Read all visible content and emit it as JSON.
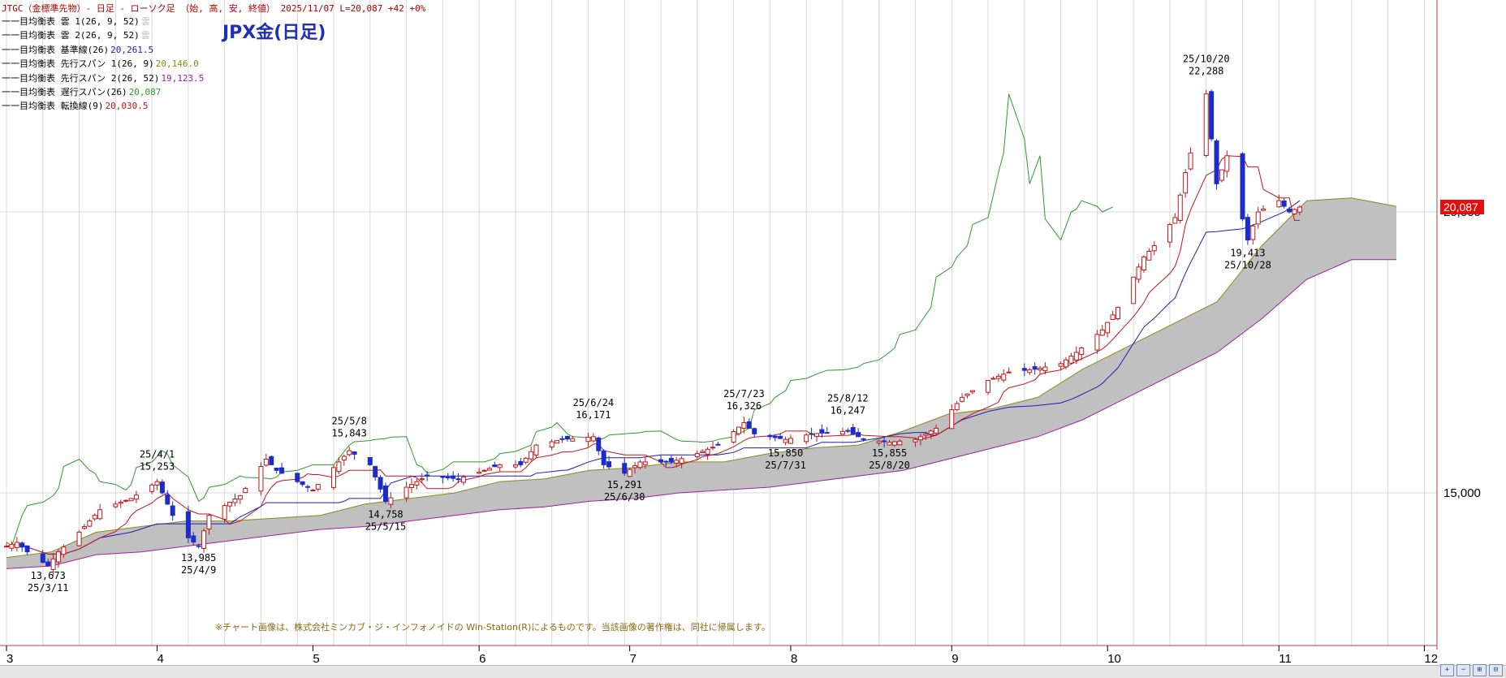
{
  "header": "JTGC（金標準先物）- 日足 - ローソク足 （始, 高, 安, 終値） 2025/11/07 L=20,087 +42 +0%",
  "title": "JPX金(日足)",
  "legend": [
    {
      "label": "一目均衡表 雲 1(26, 9, 52)",
      "value": "雲",
      "color": "#bdbdbd"
    },
    {
      "label": "一目均衡表 雲 2(26, 9, 52)",
      "value": "雲",
      "color": "#bdbdbd"
    },
    {
      "label": "一目均衡表 基準線(26)",
      "value": "20,261.5",
      "color": "#1c1cb8"
    },
    {
      "label": "一目均衡表 先行スパン 1(26, 9)",
      "value": "20,146.0",
      "color": "#8a8a20"
    },
    {
      "label": "一目均衡表 先行スパン 2(26, 52)",
      "value": "19,123.5",
      "color": "#a020a0"
    },
    {
      "label": "一目均衡表 遅行スパン(26)",
      "value": "20,087",
      "color": "#2c9a2c"
    },
    {
      "label": "一目均衡表 転換線(9)",
      "value": "20,030.5",
      "color": "#c01818"
    }
  ],
  "copyright": "※チャート画像は、株式会社ミンカブ・ジ・インフォノイドの Win-Station(R)によるものです。当該画像の著作権は、同社に帰属します。",
  "chart_data": {
    "type": "candlestick",
    "title": "JPX金(日足)",
    "date_range": [
      "2025-03-03",
      "2025-12-05"
    ],
    "y_axis": {
      "ticks": [
        15000,
        20000
      ],
      "tick_labels": [
        "15,000",
        "20,000"
      ]
    },
    "x_axis": {
      "tick_labels": [
        {
          "label": "3",
          "date": "2025-03-03"
        },
        {
          "label": "4",
          "date": "2025-04-01"
        },
        {
          "label": "5",
          "date": "2025-05-01"
        },
        {
          "label": "6",
          "date": "2025-06-02"
        },
        {
          "label": "7",
          "date": "2025-07-01"
        },
        {
          "label": "8",
          "date": "2025-08-01"
        },
        {
          "label": "9",
          "date": "2025-09-01"
        },
        {
          "label": "10",
          "date": "2025-10-01"
        },
        {
          "label": "11",
          "date": "2025-11-03"
        },
        {
          "label": "12",
          "date": "2025-12-01"
        }
      ]
    },
    "last_price": "20,087",
    "close_path": [
      [
        "2025-03-03",
        14050
      ],
      [
        "2025-03-05",
        14120
      ],
      [
        "2025-03-07",
        13950
      ],
      [
        "2025-03-11",
        13700
      ],
      [
        "2025-03-13",
        13950
      ],
      [
        "2025-03-17",
        14300
      ],
      [
        "2025-03-21",
        14700
      ],
      [
        "2025-03-27",
        14900
      ],
      [
        "2025-04-01",
        15200
      ],
      [
        "2025-04-04",
        14600
      ],
      [
        "2025-04-07",
        14200
      ],
      [
        "2025-04-09",
        14050
      ],
      [
        "2025-04-11",
        14600
      ],
      [
        "2025-04-17",
        14950
      ],
      [
        "2025-04-22",
        15600
      ],
      [
        "2025-04-24",
        15400
      ],
      [
        "2025-04-28",
        15200
      ],
      [
        "2025-05-01",
        15050
      ],
      [
        "2025-05-08",
        15750
      ],
      [
        "2025-05-12",
        15500
      ],
      [
        "2025-05-15",
        14850
      ],
      [
        "2025-05-19",
        15100
      ],
      [
        "2025-05-23",
        15300
      ],
      [
        "2025-05-29",
        15250
      ],
      [
        "2025-06-03",
        15400
      ],
      [
        "2025-06-06",
        15500
      ],
      [
        "2025-06-10",
        15500
      ],
      [
        "2025-06-13",
        15850
      ],
      [
        "2025-06-18",
        15950
      ],
      [
        "2025-06-24",
        16000
      ],
      [
        "2025-06-26",
        15500
      ],
      [
        "2025-06-30",
        15350
      ],
      [
        "2025-07-03",
        15550
      ],
      [
        "2025-07-09",
        15550
      ],
      [
        "2025-07-14",
        15700
      ],
      [
        "2025-07-18",
        15850
      ],
      [
        "2025-07-23",
        16250
      ],
      [
        "2025-07-25",
        16050
      ],
      [
        "2025-07-31",
        15950
      ],
      [
        "2025-08-05",
        16050
      ],
      [
        "2025-08-12",
        16100
      ],
      [
        "2025-08-15",
        15950
      ],
      [
        "2025-08-20",
        15900
      ],
      [
        "2025-08-25",
        15950
      ],
      [
        "2025-08-29",
        16150
      ],
      [
        "2025-09-03",
        16700
      ],
      [
        "2025-09-08",
        17000
      ],
      [
        "2025-09-12",
        17150
      ],
      [
        "2025-09-17",
        17200
      ],
      [
        "2025-09-22",
        17300
      ],
      [
        "2025-09-25",
        17500
      ],
      [
        "2025-09-30",
        17900
      ],
      [
        "2025-10-03",
        18300
      ],
      [
        "2025-10-08",
        19200
      ],
      [
        "2025-10-10",
        19400
      ],
      [
        "2025-10-14",
        19900
      ],
      [
        "2025-10-16",
        20700
      ],
      [
        "2025-10-20",
        22100
      ],
      [
        "2025-10-22",
        20500
      ],
      [
        "2025-10-24",
        21000
      ],
      [
        "2025-10-28",
        19500
      ],
      [
        "2025-10-30",
        20000
      ],
      [
        "2025-11-03",
        20200
      ],
      [
        "2025-11-05",
        20000
      ],
      [
        "2025-11-07",
        20087
      ]
    ],
    "annotations": [
      {
        "date": "2025-03-11",
        "price": 13673,
        "label": [
          "13,673",
          "25/3/11"
        ],
        "pos": "below"
      },
      {
        "date": "2025-04-01",
        "price": 15253,
        "label": [
          "25/4/1",
          "15,253"
        ],
        "pos": "above"
      },
      {
        "date": "2025-04-09",
        "price": 13985,
        "label": [
          "13,985",
          "25/4/9"
        ],
        "pos": "below"
      },
      {
        "date": "2025-05-08",
        "price": 15843,
        "label": [
          "25/5/8",
          "15,843"
        ],
        "pos": "above"
      },
      {
        "date": "2025-05-15",
        "price": 14758,
        "label": [
          "14,758",
          "25/5/15"
        ],
        "pos": "below"
      },
      {
        "date": "2025-06-24",
        "price": 16171,
        "label": [
          "25/6/24",
          "16,171"
        ],
        "pos": "above"
      },
      {
        "date": "2025-06-30",
        "price": 15291,
        "label": [
          "15,291",
          "25/6/30"
        ],
        "pos": "below"
      },
      {
        "date": "2025-07-23",
        "price": 16326,
        "label": [
          "25/7/23",
          "16,326"
        ],
        "pos": "above"
      },
      {
        "date": "2025-07-31",
        "price": 15850,
        "label": [
          "15,850",
          "25/7/31"
        ],
        "pos": "below"
      },
      {
        "date": "2025-08-12",
        "price": 16247,
        "label": [
          "25/8/12",
          "16,247"
        ],
        "pos": "above"
      },
      {
        "date": "2025-08-20",
        "price": 15855,
        "label": [
          "15,855",
          "25/8/20"
        ],
        "pos": "below"
      },
      {
        "date": "2025-10-20",
        "price": 22288,
        "label": [
          "25/10/20",
          "22,288"
        ],
        "pos": "above"
      },
      {
        "date": "2025-10-28",
        "price": 19413,
        "label": [
          "19,413",
          "25/10/28"
        ],
        "pos": "below"
      }
    ],
    "series": [
      {
        "name": "転換線(9)",
        "color": "#c01818"
      },
      {
        "name": "基準線(26)",
        "color": "#1c1cb8"
      },
      {
        "name": "遅行スパン(26)",
        "color": "#2c9a2c"
      },
      {
        "name": "先行スパン 1(26, 9)",
        "color": "#8a8a20"
      },
      {
        "name": "先行スパン 2(26, 52)",
        "color": "#a020a0"
      }
    ],
    "cloud": {
      "span1": [
        [
          13850
        ],
        [
          13950
        ],
        [
          14300
        ],
        [
          14400
        ],
        [
          14500
        ],
        [
          14500
        ],
        [
          14550
        ],
        [
          14600
        ],
        [
          14800
        ],
        [
          14900
        ],
        [
          15000
        ],
        [
          15200
        ],
        [
          15250
        ],
        [
          15400
        ],
        [
          15450
        ],
        [
          15550
        ],
        [
          15550
        ],
        [
          15700
        ],
        [
          15800
        ],
        [
          15850
        ],
        [
          16100
        ],
        [
          16400
        ],
        [
          16500
        ],
        [
          16700
        ],
        [
          17200
        ],
        [
          17600
        ],
        [
          18000
        ],
        [
          18400
        ],
        [
          19400
        ],
        [
          20200
        ],
        [
          20250
        ],
        [
          20100
        ]
      ],
      "span2": [
        [
          13650
        ],
        [
          13700
        ],
        [
          13900
        ],
        [
          13950
        ],
        [
          14050
        ],
        [
          14150
        ],
        [
          14250
        ],
        [
          14350
        ],
        [
          14400
        ],
        [
          14500
        ],
        [
          14600
        ],
        [
          14700
        ],
        [
          14750
        ],
        [
          14850
        ],
        [
          14900
        ],
        [
          15000
        ],
        [
          15050
        ],
        [
          15100
        ],
        [
          15200
        ],
        [
          15300
        ],
        [
          15400
        ],
        [
          15600
        ],
        [
          15800
        ],
        [
          16000
        ],
        [
          16300
        ],
        [
          16700
        ],
        [
          17100
        ],
        [
          17500
        ],
        [
          18100
        ],
        [
          18800
        ],
        [
          19150
        ],
        [
          19150
        ]
      ]
    },
    "colors": {
      "up": "#c01818",
      "down": "#1c2cc8",
      "cloud": "#c0c0c0",
      "grid": "#d8d8d8",
      "price_box": "#e01010"
    }
  }
}
